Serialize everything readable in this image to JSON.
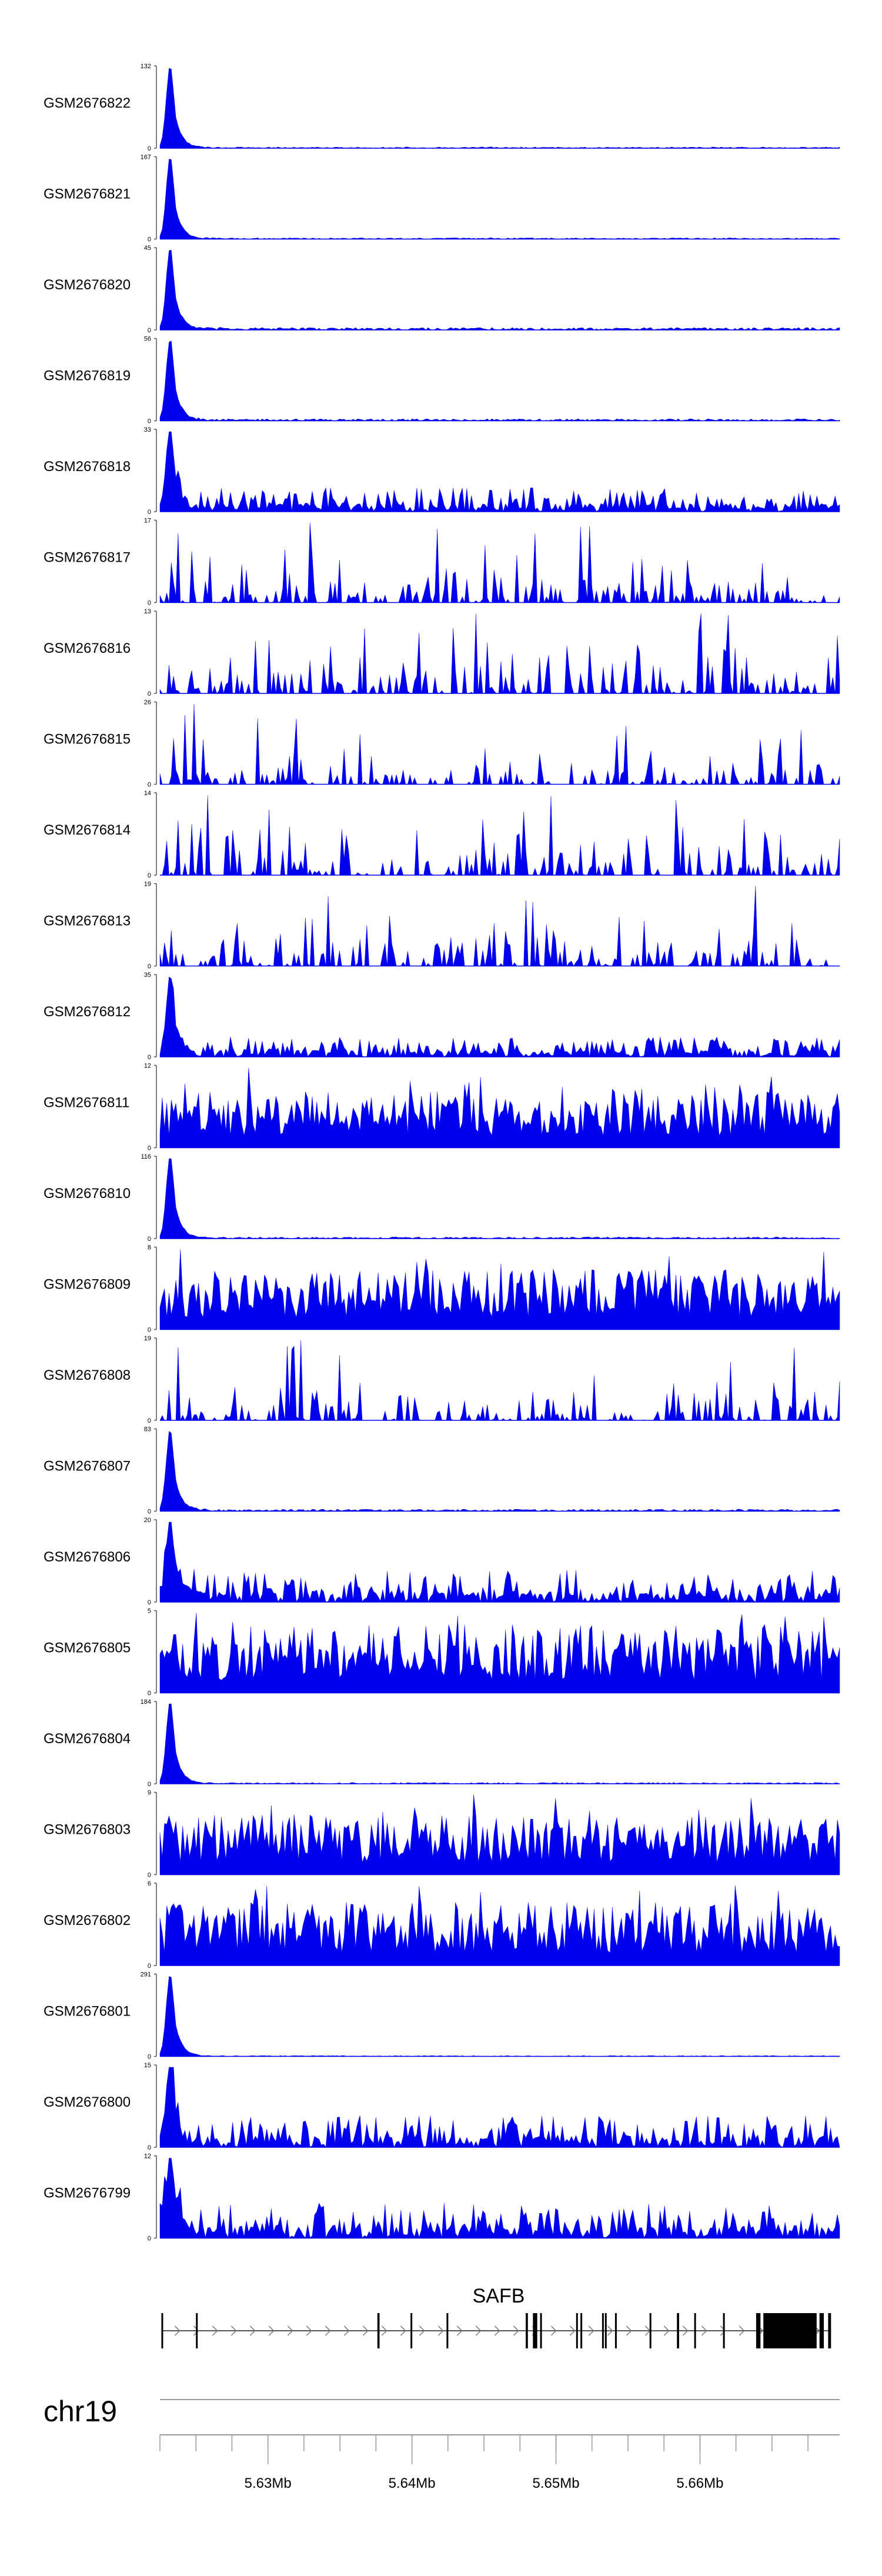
{
  "chart_data": {
    "type": "area",
    "title": "",
    "color": "#0000ee",
    "region": {
      "chrom": "chr19",
      "start_mb": 5.6225,
      "end_mb": 5.6697
    },
    "tracks": [
      {
        "name": "GSM2676822",
        "ymax": 132,
        "ymin": 0,
        "pattern": "peak",
        "peak_pos": 0.015,
        "noise": 0.03
      },
      {
        "name": "GSM2676821",
        "ymax": 167,
        "ymin": 0,
        "pattern": "peak",
        "peak_pos": 0.015,
        "noise": 0.03
      },
      {
        "name": "GSM2676820",
        "ymax": 45,
        "ymin": 0,
        "pattern": "peak",
        "peak_pos": 0.015,
        "noise": 0.06
      },
      {
        "name": "GSM2676819",
        "ymax": 56,
        "ymin": 0,
        "pattern": "peak",
        "peak_pos": 0.015,
        "noise": 0.05
      },
      {
        "name": "GSM2676818",
        "ymax": 33,
        "ymin": 0,
        "pattern": "peak-dense",
        "peak_pos": 0.015,
        "noise": 0.3
      },
      {
        "name": "GSM2676817",
        "ymax": 17,
        "ymin": 0,
        "pattern": "sparse",
        "noise": 0.6
      },
      {
        "name": "GSM2676816",
        "ymax": 13,
        "ymin": 0,
        "pattern": "sparse",
        "noise": 0.7
      },
      {
        "name": "GSM2676815",
        "ymax": 26,
        "ymin": 0,
        "pattern": "sparse",
        "noise": 0.5
      },
      {
        "name": "GSM2676814",
        "ymax": 14,
        "ymin": 0,
        "pattern": "sparse",
        "noise": 0.7
      },
      {
        "name": "GSM2676813",
        "ymax": 19,
        "ymin": 0,
        "pattern": "sparse",
        "noise": 0.65
      },
      {
        "name": "GSM2676812",
        "ymax": 35,
        "ymin": 0,
        "pattern": "peak-dense",
        "peak_pos": 0.015,
        "noise": 0.25
      },
      {
        "name": "GSM2676811",
        "ymax": 12,
        "ymin": 0,
        "pattern": "dense",
        "noise": 0.55
      },
      {
        "name": "GSM2676810",
        "ymax": 116,
        "ymin": 0,
        "pattern": "peak",
        "peak_pos": 0.015,
        "noise": 0.04
      },
      {
        "name": "GSM2676809",
        "ymax": 8,
        "ymin": 0,
        "pattern": "dense",
        "noise": 0.6
      },
      {
        "name": "GSM2676808",
        "ymax": 19,
        "ymin": 0,
        "pattern": "sparse",
        "noise": 0.55
      },
      {
        "name": "GSM2676807",
        "ymax": 83,
        "ymin": 0,
        "pattern": "peak",
        "peak_pos": 0.015,
        "noise": 0.05
      },
      {
        "name": "GSM2676806",
        "ymax": 20,
        "ymin": 0,
        "pattern": "peak-dense",
        "peak_pos": 0.015,
        "noise": 0.4
      },
      {
        "name": "GSM2676805",
        "ymax": 5,
        "ymin": 0,
        "pattern": "dense",
        "noise": 0.7
      },
      {
        "name": "GSM2676804",
        "ymax": 184,
        "ymin": 0,
        "pattern": "peak",
        "peak_pos": 0.015,
        "noise": 0.03
      },
      {
        "name": "GSM2676803",
        "ymax": 9,
        "ymin": 0,
        "pattern": "dense",
        "noise": 0.6
      },
      {
        "name": "GSM2676802",
        "ymax": 6,
        "ymin": 0,
        "pattern": "dense",
        "noise": 0.6
      },
      {
        "name": "GSM2676801",
        "ymax": 291,
        "ymin": 0,
        "pattern": "peak",
        "peak_pos": 0.015,
        "noise": 0.02
      },
      {
        "name": "GSM2676800",
        "ymax": 15,
        "ymin": 0,
        "pattern": "peak-dense",
        "peak_pos": 0.015,
        "noise": 0.4
      },
      {
        "name": "GSM2676799",
        "ymax": 12,
        "ymin": 0,
        "pattern": "peak-dense",
        "peak_pos": 0.015,
        "noise": 0.45
      }
    ],
    "gene": {
      "name": "SAFB",
      "strand": "+",
      "exons_mb": [
        [
          5.6226,
          5.62265
        ],
        [
          5.625,
          5.62505
        ],
        [
          5.6376,
          5.63775
        ],
        [
          5.6399,
          5.63995
        ],
        [
          5.6424,
          5.64245
        ],
        [
          5.6479,
          5.64805
        ],
        [
          5.6484,
          5.6487
        ],
        [
          5.6489,
          5.649
        ],
        [
          5.6514,
          5.6515
        ],
        [
          5.6517,
          5.6518
        ],
        [
          5.6532,
          5.6533
        ],
        [
          5.6534,
          5.6535
        ],
        [
          5.6541,
          5.6542
        ],
        [
          5.6565,
          5.6566
        ],
        [
          5.6584,
          5.65855
        ],
        [
          5.6596,
          5.6597
        ],
        [
          5.6616,
          5.6617
        ],
        [
          5.6639,
          5.6642
        ],
        [
          5.6644,
          5.6681
        ],
        [
          5.6683,
          5.6686
        ],
        [
          5.6689,
          5.6691
        ]
      ]
    },
    "chromosome": "chr19",
    "x_ticks": [
      {
        "mb": 5.63,
        "label": "5.63Mb"
      },
      {
        "mb": 5.64,
        "label": "5.64Mb"
      },
      {
        "mb": 5.65,
        "label": "5.65Mb"
      },
      {
        "mb": 5.66,
        "label": "5.66Mb"
      }
    ],
    "minor_tick_step_mb": 0.0025
  }
}
